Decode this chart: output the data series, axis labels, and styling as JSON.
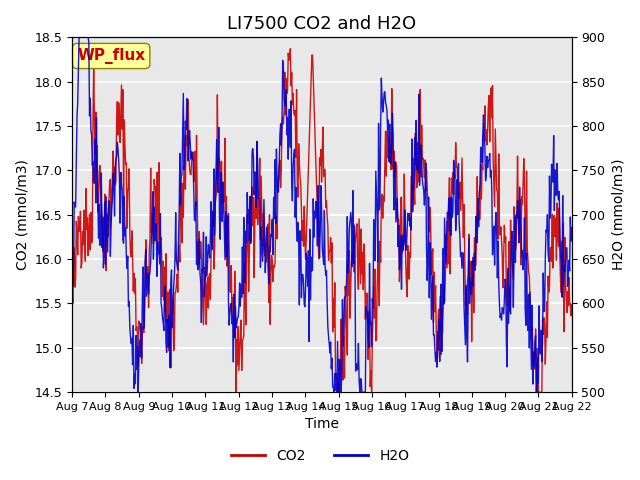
{
  "title": "LI7500 CO2 and H2O",
  "xlabel": "Time",
  "ylabel_left": "CO2 (mmol/m3)",
  "ylabel_right": "H2O (mmol/m3)",
  "ylim_left": [
    14.5,
    18.5
  ],
  "ylim_right": [
    500,
    900
  ],
  "xtick_labels": [
    "Aug 7",
    "Aug 8",
    "Aug 9",
    "Aug 10",
    "Aug 11",
    "Aug 12",
    "Aug 13",
    "Aug 14",
    "Aug 15",
    "Aug 16",
    "Aug 17",
    "Aug 18",
    "Aug 19",
    "Aug 20",
    "Aug 21",
    "Aug 22"
  ],
  "watermark_text": "WP_flux",
  "watermark_color": "#cc0000",
  "watermark_bg": "#ffff99",
  "co2_color": "#cc0000",
  "h2o_color": "#0000cc",
  "axes_bg_color": "#e8e8e8",
  "grid_color": "white",
  "title_fontsize": 13,
  "label_fontsize": 10,
  "tick_fontsize": 9
}
